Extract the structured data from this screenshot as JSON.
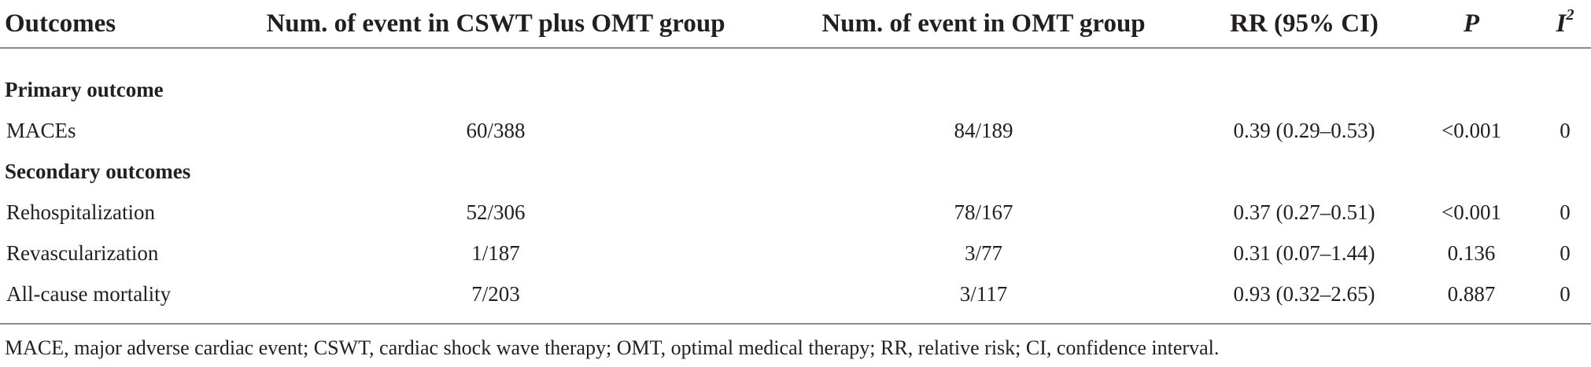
{
  "table": {
    "headers": {
      "outcomes": "Outcomes",
      "cswt": "Num. of event in CSWT plus OMT group",
      "omt": "Num. of event in OMT group",
      "rr": "RR (95% CI)",
      "p": "P",
      "i2_base": "I",
      "i2_sup": "2"
    },
    "sections": [
      {
        "title": "Primary outcome",
        "rows": [
          {
            "outcome": "MACEs",
            "cswt": "60/388",
            "omt": "84/189",
            "rr": "0.39 (0.29–0.53)",
            "p": "<0.001",
            "i2": "0"
          }
        ]
      },
      {
        "title": "Secondary outcomes",
        "rows": [
          {
            "outcome": "Rehospitalization",
            "cswt": "52/306",
            "omt": "78/167",
            "rr": "0.37 (0.27–0.51)",
            "p": "<0.001",
            "i2": "0"
          },
          {
            "outcome": "Revascularization",
            "cswt": "1/187",
            "omt": "3/77",
            "rr": "0.31 (0.07–1.44)",
            "p": "0.136",
            "i2": "0"
          },
          {
            "outcome": "All-cause mortality",
            "cswt": "7/203",
            "omt": "3/117",
            "rr": "0.93 (0.32–2.65)",
            "p": "0.887",
            "i2": "0"
          }
        ]
      }
    ],
    "footnote": "MACE, major adverse cardiac event; CSWT, cardiac shock wave therapy; OMT, optimal medical therapy; RR, relative risk; CI, confidence interval."
  }
}
